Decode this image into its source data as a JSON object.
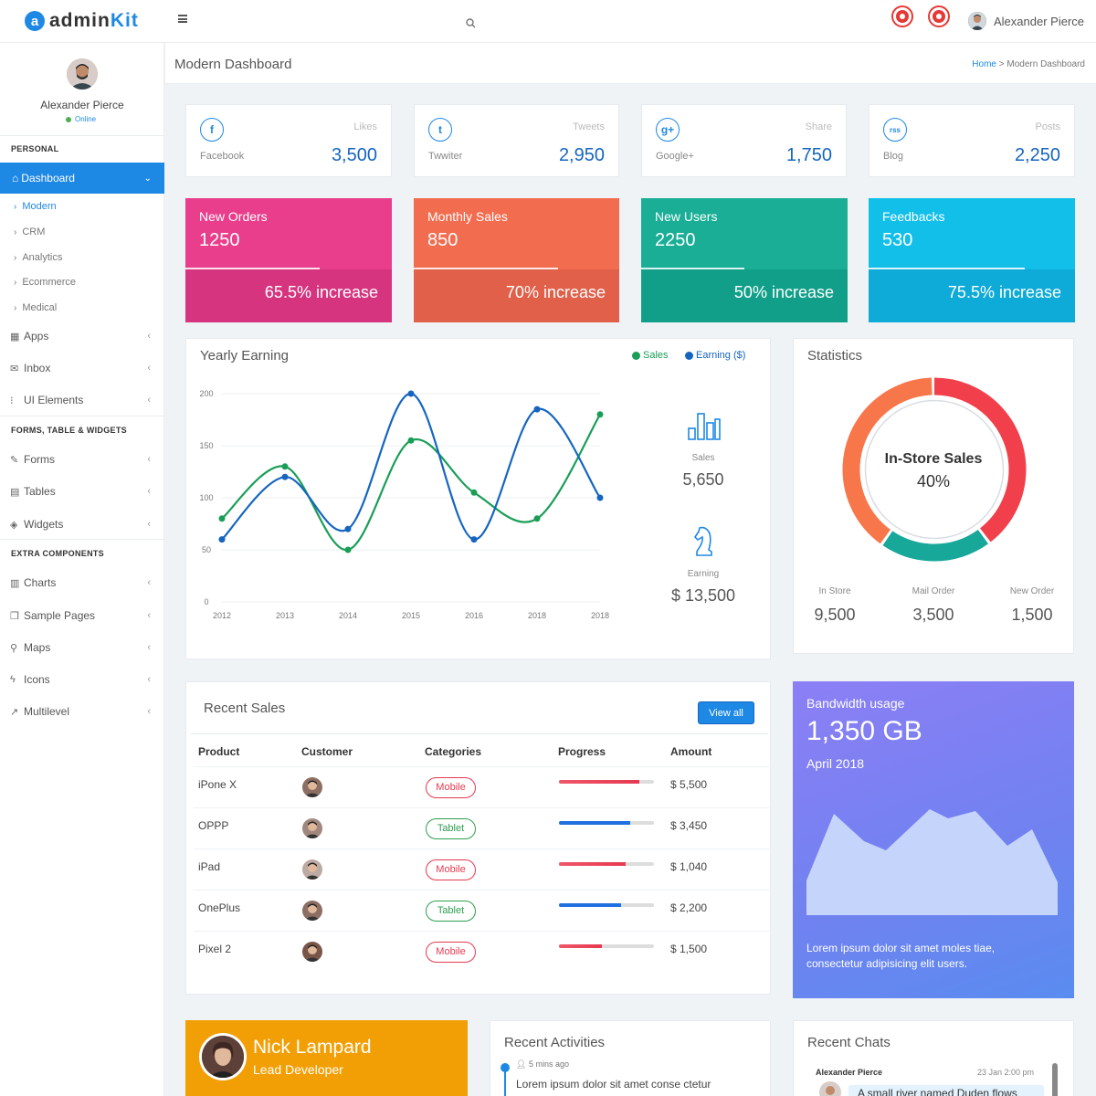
{
  "app": {
    "logo_letter": "a",
    "logo_admin": "admin",
    "logo_kit": "Kit",
    "user_name": "Alexander Pierce"
  },
  "sidebar": {
    "user_name": "Alexander Pierce",
    "status": "Online",
    "section_personal": "PERSONAL",
    "dashboard": "Dashboard",
    "sub_items": [
      "Modern",
      "CRM",
      "Analytics",
      "Ecommerce",
      "Medical"
    ],
    "apps": "Apps",
    "inbox": "Inbox",
    "ui_elements": "UI Elements",
    "section_forms": "FORMS, TABLE & WIDGETS",
    "forms": "Forms",
    "tables": "Tables",
    "widgets": "Widgets",
    "section_extra": "EXTRA COMPONENTS",
    "charts": "Charts",
    "sample_pages": "Sample Pages",
    "maps": "Maps",
    "icons": "Icons",
    "multilevel": "Multilevel"
  },
  "header": {
    "title": "Modern Dashboard",
    "breadcrumb_home": "Home",
    "breadcrumb_sep": ">",
    "breadcrumb_current": "Modern Dashboard"
  },
  "social": [
    {
      "icon": "f",
      "label": "Likes",
      "name": "Facebook",
      "value": "3,500"
    },
    {
      "icon": "t",
      "label": "Tweets",
      "name": "Twwiter",
      "value": "2,950"
    },
    {
      "icon": "g+",
      "label": "Share",
      "name": "Google+",
      "value": "1,750"
    },
    {
      "icon": "rss",
      "label": "Posts",
      "name": "Blog",
      "value": "2,250"
    }
  ],
  "stats": [
    {
      "title": "New Orders",
      "value": "1250",
      "increase": "65.5% increase",
      "progress": 0.65,
      "color_top": "#e83e8c",
      "color_bottom": "#d6347f"
    },
    {
      "title": "Monthly Sales",
      "value": "850",
      "increase": "70% increase",
      "progress": 0.7,
      "color_top": "#f26c4f",
      "color_bottom": "#e0604a"
    },
    {
      "title": "New Users",
      "value": "2250",
      "increase": "50% increase",
      "progress": 0.5,
      "color_top": "#1aae96",
      "color_bottom": "#129f89"
    },
    {
      "title": "Feedbacks",
      "value": "530",
      "increase": "75.5% increase",
      "progress": 0.755,
      "color_top": "#12bfe8",
      "color_bottom": "#0eaad8"
    }
  ],
  "yearly": {
    "title": "Yearly Earning",
    "legend_sales": "Sales",
    "legend_earning": "Earning ($)",
    "sales_label": "Sales",
    "sales_value": "5,650",
    "earning_label": "Earning",
    "earning_value": "$ 13,500"
  },
  "chart_data": {
    "type": "line",
    "x": [
      "2012",
      "2013",
      "2014",
      "2015",
      "2016",
      "2018",
      "2018"
    ],
    "series": [
      {
        "name": "Sales",
        "color": "#1a9e57",
        "values": [
          80,
          130,
          50,
          155,
          105,
          80,
          180
        ]
      },
      {
        "name": "Earning ($)",
        "color": "#1565c0",
        "values": [
          60,
          120,
          70,
          200,
          60,
          185,
          100
        ]
      }
    ],
    "yticks": [
      0,
      50,
      100,
      150,
      200
    ],
    "ylim": [
      0,
      200
    ],
    "grid": true,
    "legend": "top-right"
  },
  "statistics": {
    "title": "Statistics",
    "center_label": "In-Store Sales",
    "center_value": "40%",
    "donut": [
      {
        "label": "In-Store",
        "value": 40,
        "color": "#f1404b"
      },
      {
        "label": "Mail Order",
        "value": 20,
        "color": "#17a89a"
      },
      {
        "label": "New Order",
        "value": 40,
        "color": "#f7774a"
      }
    ],
    "items": [
      {
        "label": "In Store",
        "value": "9,500"
      },
      {
        "label": "Mail Order",
        "value": "3,500"
      },
      {
        "label": "New Order",
        "value": "1,500"
      }
    ]
  },
  "recent_sales": {
    "title": "Recent Sales",
    "view_all": "View all",
    "columns": [
      "Product",
      "Customer",
      "Categories",
      "Progress",
      "Amount"
    ],
    "rows": [
      {
        "product": "iPone X",
        "category": "Mobile",
        "progress": 0.85,
        "amount": "$ 5,500"
      },
      {
        "product": "OPPP",
        "category": "Tablet",
        "progress": 0.75,
        "amount": "$ 3,450"
      },
      {
        "product": "iPad",
        "category": "Mobile",
        "progress": 0.7,
        "amount": "$ 1,040"
      },
      {
        "product": "OnePlus",
        "category": "Tablet",
        "progress": 0.65,
        "amount": "$ 2,200"
      },
      {
        "product": "Pixel 2",
        "category": "Mobile",
        "progress": 0.45,
        "amount": "$ 1,500"
      }
    ],
    "mobile_color": "#e53950",
    "tablet_color": "#2e9e4f"
  },
  "bandwidth": {
    "title": "Bandwidth usage",
    "value": "1,350 GB",
    "date": "April 2018",
    "description": "Lorem ipsum dolor sit amet moles tiae, consectetur adipisicing elit users."
  },
  "profile": {
    "name": "Nick Lampard",
    "role": "Lead Developer"
  },
  "activities": {
    "title": "Recent Activities",
    "time": "5 mins ago",
    "text": "Lorem ipsum dolor sit amet conse ctetur"
  },
  "chats": {
    "title": "Recent Chats",
    "name": "Alexander Pierce",
    "date": "23 Jan 2:00 pm",
    "message": "A small river named Duden flows"
  }
}
